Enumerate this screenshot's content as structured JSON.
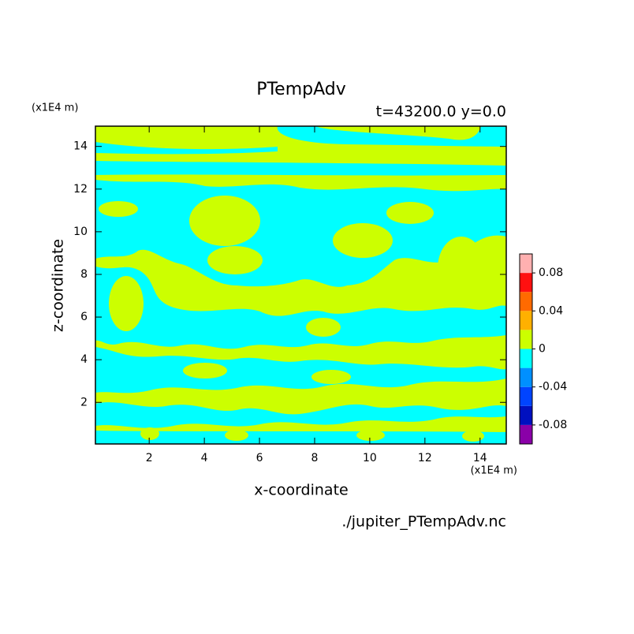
{
  "chart_data": {
    "type": "contour",
    "title": "PTempAdv",
    "subtitle": "t=43200.0 y=0.0",
    "x_label": "x-coordinate",
    "y_label": "z-coordinate",
    "x_unit": "(x1E4 m)",
    "y_unit": "(x1E4 m)",
    "source": "./jupiter_PTempAdv.nc",
    "xlim": [
      0.05,
      14.95
    ],
    "ylim": [
      0.05,
      14.95
    ],
    "xticks": [
      2,
      4,
      6,
      8,
      10,
      12,
      14
    ],
    "yticks": [
      2,
      4,
      6,
      8,
      10,
      12,
      14
    ],
    "levels": [
      -0.1,
      -0.08,
      -0.06,
      -0.04,
      -0.02,
      0,
      0.02,
      0.04,
      0.06,
      0.08,
      0.1
    ],
    "colors": [
      "#8a00a8",
      "#0010c0",
      "#0044ff",
      "#0090ff",
      "#00ffff",
      "#ccff00",
      "#ffb000",
      "#ff6a00",
      "#ff1010",
      "#ffb0b0"
    ],
    "colorbar_ticks": [
      0.08,
      0.04,
      0,
      -0.04,
      -0.08
    ]
  }
}
